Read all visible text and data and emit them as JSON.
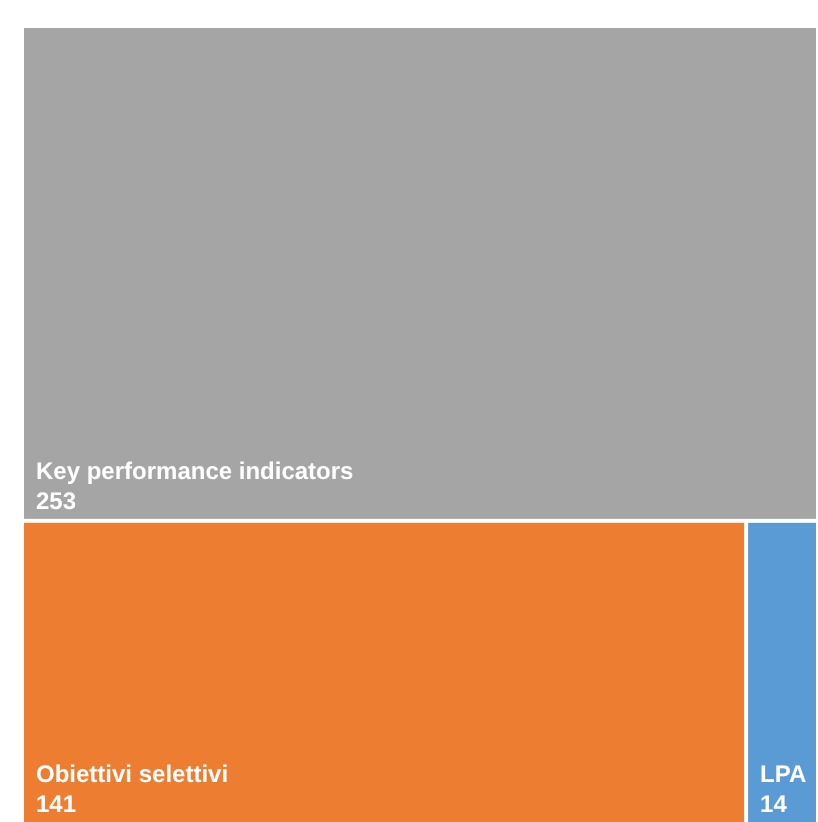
{
  "chart_data": {
    "type": "other",
    "categories": [
      "Key performance indicators",
      "Obiettivi selettivi",
      "LPA"
    ],
    "values": [
      253,
      141,
      14
    ],
    "colors": [
      "#a5a5a5",
      "#ed7d31",
      "#5b9bd5"
    ],
    "data_labels": true
  }
}
